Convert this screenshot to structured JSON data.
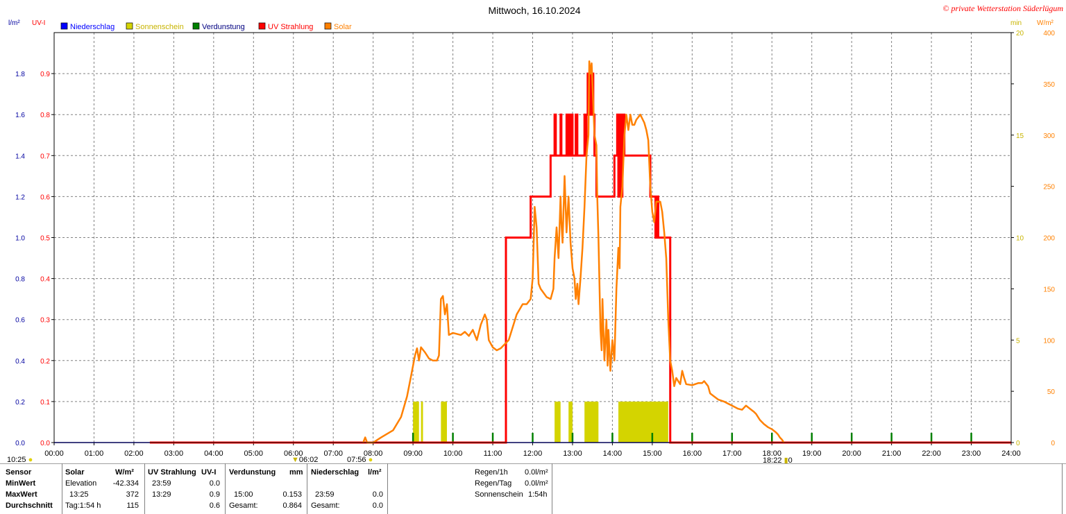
{
  "header": {
    "title": "Mittwoch, 16.10.2024",
    "copyright": "© private Wetterstation Süderlügum",
    "left_unit_1": "l/m²",
    "left_unit_2": "UV-I",
    "right_unit_1": "min",
    "right_unit_2": "W/m²"
  },
  "legend": [
    {
      "label": "Niederschlag",
      "color": "#0000ff"
    },
    {
      "label": "Sonnenschein",
      "color": "#d4d400"
    },
    {
      "label": "Verdunstung",
      "color": "#008000"
    },
    {
      "label": "UV Strahlung",
      "color": "#ff0000"
    },
    {
      "label": "Solar",
      "color": "#ff8000"
    }
  ],
  "colors": {
    "niederschlag": "#0000ff",
    "sonnenschein": "#d4d400",
    "verdunstung": "#008000",
    "uv": "#ff0000",
    "solar": "#ff8000",
    "grid": "#808080"
  },
  "chart_data": {
    "type": "line",
    "title": "Mittwoch, 16.10.2024",
    "x_ticks": [
      "00:00",
      "01:00",
      "02:00",
      "03:00",
      "04:00",
      "05:00",
      "06:00",
      "07:00",
      "08:00",
      "09:00",
      "10:00",
      "11:00",
      "12:00",
      "13:00",
      "14:00",
      "15:00",
      "16:00",
      "17:00",
      "18:00",
      "19:00",
      "20:00",
      "21:00",
      "22:00",
      "23:00",
      "24:00"
    ],
    "xlim_hours": [
      0,
      24
    ],
    "y_axes": {
      "niederschlag": {
        "unit": "l/m²",
        "range": [
          0,
          2
        ],
        "ticks": [
          "0.0",
          "0.2",
          "0.4",
          "0.6",
          "0.8",
          "1.0",
          "1.2",
          "1.4",
          "1.6",
          "1.8"
        ]
      },
      "uv": {
        "unit": "UV-I",
        "range": [
          0,
          1
        ],
        "ticks": [
          "0.0",
          "0.1",
          "0.2",
          "0.3",
          "0.4",
          "0.5",
          "0.6",
          "0.7",
          "0.8",
          "0.9"
        ]
      },
      "sonnenschein": {
        "unit": "min",
        "range": [
          0,
          20
        ],
        "ticks": [
          "0",
          "5",
          "10",
          "15",
          "20"
        ]
      },
      "solar": {
        "unit": "W/m²",
        "range": [
          0,
          400
        ],
        "ticks": [
          "0",
          "50",
          "100",
          "150",
          "200",
          "250",
          "300",
          "350",
          "400"
        ]
      }
    },
    "series": [
      {
        "name": "Solar",
        "unit": "W/m²",
        "points": [
          [
            7.75,
            0
          ],
          [
            7.8,
            5
          ],
          [
            7.85,
            0
          ],
          [
            8.0,
            0
          ],
          [
            8.2,
            5
          ],
          [
            8.5,
            12
          ],
          [
            8.7,
            25
          ],
          [
            8.85,
            45
          ],
          [
            8.95,
            65
          ],
          [
            9.05,
            85
          ],
          [
            9.1,
            92
          ],
          [
            9.15,
            80
          ],
          [
            9.2,
            93
          ],
          [
            9.3,
            88
          ],
          [
            9.4,
            82
          ],
          [
            9.5,
            80
          ],
          [
            9.6,
            80
          ],
          [
            9.65,
            85
          ],
          [
            9.7,
            140
          ],
          [
            9.75,
            143
          ],
          [
            9.8,
            125
          ],
          [
            9.85,
            135
          ],
          [
            9.9,
            105
          ],
          [
            10.0,
            107
          ],
          [
            10.2,
            105
          ],
          [
            10.3,
            108
          ],
          [
            10.4,
            104
          ],
          [
            10.5,
            110
          ],
          [
            10.6,
            100
          ],
          [
            10.7,
            115
          ],
          [
            10.8,
            125
          ],
          [
            10.85,
            120
          ],
          [
            10.9,
            100
          ],
          [
            11.0,
            93
          ],
          [
            11.1,
            90
          ],
          [
            11.2,
            92
          ],
          [
            11.4,
            100
          ],
          [
            11.6,
            125
          ],
          [
            11.75,
            135
          ],
          [
            11.85,
            135
          ],
          [
            11.95,
            140
          ],
          [
            12.0,
            160
          ],
          [
            12.05,
            230
          ],
          [
            12.1,
            210
          ],
          [
            12.15,
            155
          ],
          [
            12.2,
            150
          ],
          [
            12.35,
            142
          ],
          [
            12.45,
            140
          ],
          [
            12.52,
            150
          ],
          [
            12.55,
            180
          ],
          [
            12.6,
            210
          ],
          [
            12.65,
            180
          ],
          [
            12.7,
            240
          ],
          [
            12.72,
            215
          ],
          [
            12.75,
            195
          ],
          [
            12.8,
            260
          ],
          [
            12.85,
            205
          ],
          [
            12.9,
            240
          ],
          [
            12.95,
            195
          ],
          [
            13.0,
            170
          ],
          [
            13.05,
            160
          ],
          [
            13.08,
            140
          ],
          [
            13.12,
            155
          ],
          [
            13.15,
            135
          ],
          [
            13.2,
            160
          ],
          [
            13.25,
            190
          ],
          [
            13.3,
            230
          ],
          [
            13.35,
            280
          ],
          [
            13.4,
            300
          ],
          [
            13.42,
            372
          ],
          [
            13.45,
            360
          ],
          [
            13.48,
            370
          ],
          [
            13.5,
            350
          ],
          [
            13.55,
            300
          ],
          [
            13.6,
            290
          ],
          [
            13.62,
            240
          ],
          [
            13.65,
            200
          ],
          [
            13.7,
            110
          ],
          [
            13.73,
            90
          ],
          [
            13.75,
            140
          ],
          [
            13.8,
            80
          ],
          [
            13.85,
            120
          ],
          [
            13.88,
            75
          ],
          [
            13.9,
            110
          ],
          [
            13.95,
            70
          ],
          [
            14.0,
            100
          ],
          [
            14.05,
            80
          ],
          [
            14.1,
            150
          ],
          [
            14.15,
            190
          ],
          [
            14.18,
            170
          ],
          [
            14.2,
            230
          ],
          [
            14.25,
            250
          ],
          [
            14.3,
            300
          ],
          [
            14.35,
            320
          ],
          [
            14.4,
            305
          ],
          [
            14.45,
            320
          ],
          [
            14.5,
            310
          ],
          [
            14.55,
            310
          ],
          [
            14.6,
            315
          ],
          [
            14.7,
            320
          ],
          [
            14.8,
            312
          ],
          [
            14.85,
            305
          ],
          [
            14.9,
            295
          ],
          [
            14.95,
            250
          ],
          [
            15.0,
            225
          ],
          [
            15.05,
            215
          ],
          [
            15.1,
            235
          ],
          [
            15.2,
            235
          ],
          [
            15.25,
            225
          ],
          [
            15.3,
            205
          ],
          [
            15.35,
            180
          ],
          [
            15.4,
            120
          ],
          [
            15.45,
            80
          ],
          [
            15.5,
            70
          ],
          [
            15.55,
            55
          ],
          [
            15.6,
            63
          ],
          [
            15.65,
            60
          ],
          [
            15.7,
            57
          ],
          [
            15.75,
            70
          ],
          [
            15.8,
            63
          ],
          [
            15.85,
            57
          ],
          [
            16.0,
            56
          ],
          [
            16.15,
            58
          ],
          [
            16.25,
            58
          ],
          [
            16.3,
            60
          ],
          [
            16.4,
            55
          ],
          [
            16.45,
            48
          ],
          [
            16.55,
            45
          ],
          [
            16.65,
            42
          ],
          [
            16.8,
            40
          ],
          [
            16.9,
            38
          ],
          [
            17.05,
            35
          ],
          [
            17.15,
            33
          ],
          [
            17.25,
            32
          ],
          [
            17.35,
            36
          ],
          [
            17.45,
            33
          ],
          [
            17.55,
            30
          ],
          [
            17.6,
            28
          ],
          [
            17.7,
            22
          ],
          [
            17.8,
            18
          ],
          [
            17.9,
            15
          ],
          [
            18.0,
            13
          ],
          [
            18.1,
            10
          ],
          [
            18.15,
            8
          ],
          [
            18.2,
            5
          ],
          [
            18.25,
            3
          ],
          [
            18.3,
            0
          ]
        ]
      },
      {
        "name": "UV Strahlung",
        "unit": "UV-I",
        "steps": [
          [
            2.4,
            0
          ],
          [
            11.33,
            0.5
          ],
          [
            11.95,
            0.6
          ],
          [
            12.45,
            0.7
          ],
          [
            12.55,
            0.8
          ],
          [
            12.58,
            0.7
          ],
          [
            12.65,
            0.7
          ],
          [
            12.7,
            0.8
          ],
          [
            12.72,
            0.7
          ],
          [
            12.85,
            0.8
          ],
          [
            12.88,
            0.7
          ],
          [
            12.9,
            0.8
          ],
          [
            12.93,
            0.7
          ],
          [
            12.97,
            0.8
          ],
          [
            13.0,
            0.7
          ],
          [
            13.05,
            0.7
          ],
          [
            13.08,
            0.8
          ],
          [
            13.12,
            0.7
          ],
          [
            13.25,
            0.7
          ],
          [
            13.3,
            0.8
          ],
          [
            13.33,
            0.7
          ],
          [
            13.35,
            0.8
          ],
          [
            13.38,
            0.9
          ],
          [
            13.45,
            0.8
          ],
          [
            13.48,
            0.9
          ],
          [
            13.52,
            0.8
          ],
          [
            13.55,
            0.7
          ],
          [
            13.6,
            0.6
          ],
          [
            13.95,
            0.6
          ],
          [
            14.05,
            0.7
          ],
          [
            14.12,
            0.8
          ],
          [
            14.15,
            0.6
          ],
          [
            14.18,
            0.8
          ],
          [
            14.22,
            0.6
          ],
          [
            14.25,
            0.8
          ],
          [
            14.3,
            0.7
          ],
          [
            14.85,
            0.7
          ],
          [
            14.95,
            0.6
          ],
          [
            15.05,
            0.6
          ],
          [
            15.08,
            0.5
          ],
          [
            15.12,
            0.6
          ],
          [
            15.15,
            0.5
          ],
          [
            15.4,
            0.5
          ],
          [
            15.45,
            0
          ]
        ]
      },
      {
        "name": "Sonnenschein",
        "unit": "min",
        "bars": [
          [
            9.0,
            9.15,
            2
          ],
          [
            9.2,
            9.25,
            2
          ],
          [
            9.7,
            9.85,
            2
          ],
          [
            12.55,
            12.7,
            2
          ],
          [
            12.9,
            13.0,
            2
          ],
          [
            13.3,
            13.65,
            2
          ],
          [
            14.15,
            15.4,
            2
          ]
        ]
      },
      {
        "name": "Verdunstung",
        "unit": "mm",
        "spikes": [
          9.0,
          10.0,
          11.0,
          12.0,
          13.0,
          14.0,
          15.0,
          16.0,
          17.0,
          18.0,
          19.0,
          20.0,
          21.0,
          22.0,
          23.0
        ]
      },
      {
        "name": "Niederschlag",
        "unit": "l/m²",
        "points": [
          [
            0,
            0
          ],
          [
            24,
            0
          ]
        ]
      }
    ]
  },
  "below_axis": {
    "moon": "10:25",
    "sunrise_marker": "06:02",
    "sunrise": "07:56",
    "sunset": "18:22",
    "sunset_suffix": "0"
  },
  "table": {
    "col_sensor": "Sensor",
    "row_min": "MinWert",
    "row_max": "MaxWert",
    "row_avg": "Durchschnitt",
    "solar_header": "Solar",
    "solar_unit": "W/m²",
    "solar_min_label": "Elevation",
    "solar_min_value": "-42.334",
    "solar_max_time": "13:25",
    "solar_max_value": "372",
    "solar_avg_label": "Tag:1:54 h",
    "solar_avg_value": "115",
    "uv_header": "UV Strahlung",
    "uv_unit": "UV-I",
    "uv_min_time": "23:59",
    "uv_min_value": "0.0",
    "uv_max_time": "13:29",
    "uv_max_value": "0.9",
    "uv_avg_value": "0.6",
    "verd_header": "Verdunstung",
    "verd_unit": "mm",
    "verd_max_time": "15:00",
    "verd_max_value": "0.153",
    "verd_avg_label": "Gesamt:",
    "verd_avg_value": "0.864",
    "nied_header": "Niederschlag",
    "nied_unit": "l/m²",
    "nied_max_time": "23:59",
    "nied_max_value": "0.0",
    "nied_avg_label": "Gesamt:",
    "nied_avg_value": "0.0",
    "regen_1h_label": "Regen/1h",
    "regen_1h_value": "0.0l/m²",
    "regen_tag_label": "Regen/Tag",
    "regen_tag_value": "0.0l/m²",
    "sonnenschein_label": "Sonnenschein",
    "sonnenschein_value": "1:54h"
  }
}
